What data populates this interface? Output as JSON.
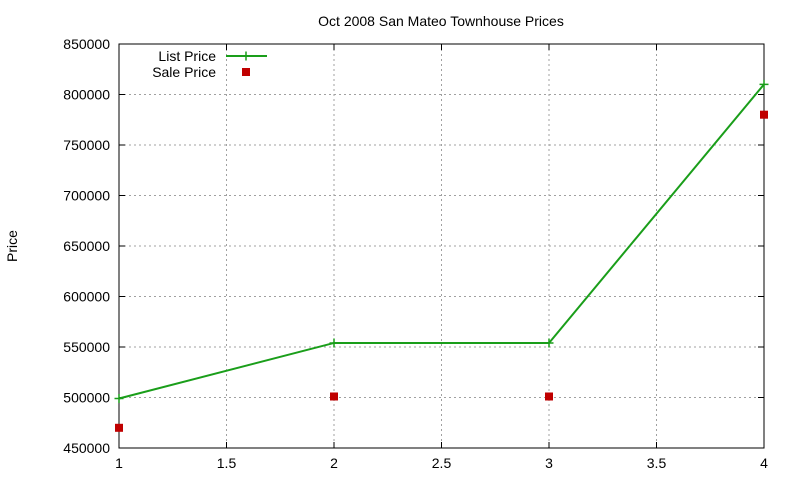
{
  "chart_data": {
    "type": "line",
    "title": "Oct 2008 San Mateo Townhouse Prices",
    "xlabel": "",
    "ylabel": "Price",
    "xlim": [
      1,
      4
    ],
    "ylim": [
      450000,
      850000
    ],
    "x_ticks": [
      "1",
      "1.5",
      "2",
      "2.5",
      "3",
      "3.5",
      "4"
    ],
    "y_ticks": [
      "450000",
      "500000",
      "550000",
      "600000",
      "650000",
      "700000",
      "750000",
      "800000",
      "850000"
    ],
    "grid": true,
    "legend_position": "top-left",
    "series": [
      {
        "name": "List Price",
        "style": "line-with-plus-markers",
        "color": "#1a9e1a",
        "x": [
          1,
          2,
          3,
          4
        ],
        "y": [
          499000,
          554000,
          554000,
          810000
        ]
      },
      {
        "name": "Sale Price",
        "style": "square-markers",
        "color": "#c00000",
        "x": [
          1,
          2,
          3,
          4
        ],
        "y": [
          470000,
          501000,
          501000,
          780000
        ]
      }
    ]
  }
}
